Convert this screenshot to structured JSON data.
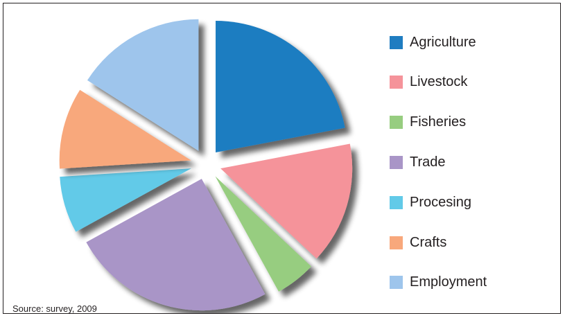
{
  "chart_data": {
    "type": "pie",
    "style": "exploded with drop shadow",
    "slices": [
      {
        "label": "Agriculture",
        "value": 22,
        "color": "#1f7dc1"
      },
      {
        "label": "Livestock",
        "value": 15,
        "color": "#f5939a"
      },
      {
        "label": "Fisheries",
        "value": 5,
        "color": "#97cd80"
      },
      {
        "label": "Trade",
        "value": 25,
        "color": "#a995c7"
      },
      {
        "label": "Procesing",
        "value": 7,
        "color": "#62cae8"
      },
      {
        "label": "Crafts",
        "value": 10,
        "color": "#f8a87c"
      },
      {
        "label": "Employment",
        "value": 16,
        "color": "#9ec5ec"
      }
    ],
    "start": "12 o'clock, clockwise",
    "legend_position": "right",
    "source": "Source: survey, 2009"
  }
}
